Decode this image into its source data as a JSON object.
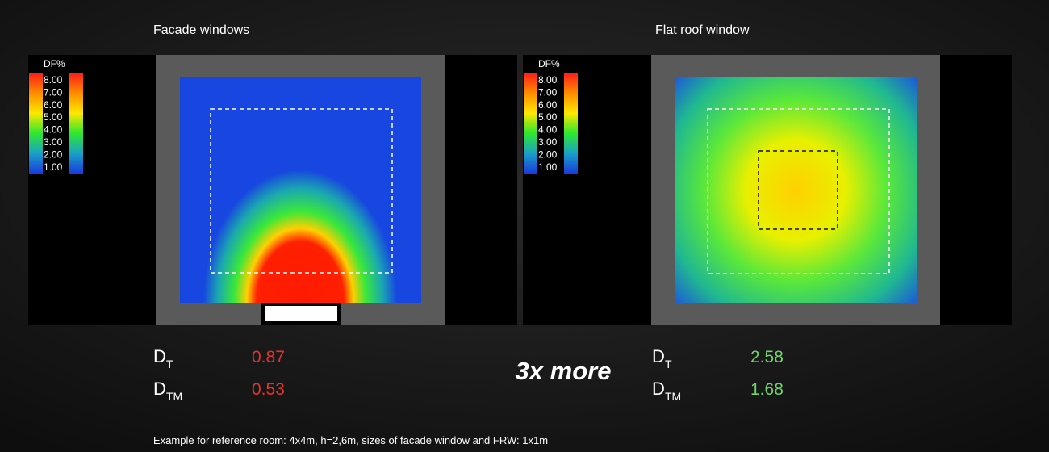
{
  "panels": [
    {
      "title": "Facade windows",
      "legend_title": "DF%",
      "legend_labels": [
        "8.00",
        "7.00",
        "6.00",
        "5.00",
        "4.00",
        "3.00",
        "2.00",
        "1.00"
      ],
      "metrics": [
        {
          "symbol": "D",
          "subscript": "T",
          "value": "0.87"
        },
        {
          "symbol": "D",
          "subscript": "TM",
          "value": "0.53"
        }
      ]
    },
    {
      "title": "Flat roof window",
      "legend_title": "DF%",
      "legend_labels": [
        "8.00",
        "7.00",
        "6.00",
        "5.00",
        "4.00",
        "3.00",
        "2.00",
        "1.00"
      ],
      "metrics": [
        {
          "symbol": "D",
          "subscript": "T",
          "value": "2.58"
        },
        {
          "symbol": "D",
          "subscript": "TM",
          "value": "1.68"
        }
      ]
    }
  ],
  "comparison": "3x more",
  "footnote": "Example for reference room: 4x4m, h=2,6m, sizes of facade window and FRW: 1x1m"
}
